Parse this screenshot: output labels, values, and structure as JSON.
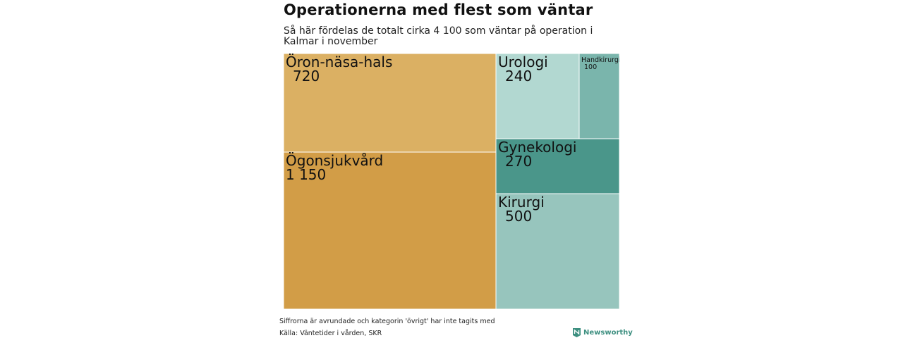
{
  "header": {
    "title": "Operationerna med flest som väntar",
    "subtitle": "Så här fördelas de totalt cirka 4 100 som väntar på operation i Kalmar i november"
  },
  "footer": {
    "note": "Siffrorna är avrundade och kategorin 'övrigt' har inte tagits med",
    "source": "Källa: Väntetider i vården, SKR",
    "brand": "Newsworthy",
    "brand_icon": "newsworthy-logo-icon"
  },
  "chart_data": {
    "type": "treemap",
    "title": "Operationerna med flest som väntar",
    "subtitle": "Så här fördelas de totalt cirka 4 100 som väntar på operation i Kalmar i november",
    "items": [
      {
        "label": "Ögonsjukvård",
        "value": 1150,
        "value_label": "1 150",
        "group": "left",
        "color": "#d29d47"
      },
      {
        "label": "Öron-näsa-hals",
        "value": 720,
        "value_label": "720",
        "group": "left",
        "color": "#dbb063"
      },
      {
        "label": "Kirurgi",
        "value": 500,
        "value_label": "500",
        "group": "right",
        "color": "#97c5bd"
      },
      {
        "label": "Gynekologi",
        "value": 270,
        "value_label": "270",
        "group": "right",
        "color": "#4a968a"
      },
      {
        "label": "Urologi",
        "value": 240,
        "value_label": "240",
        "group": "right-top",
        "color": "#b2d8d1"
      },
      {
        "label": "Handkirurgi",
        "value": 100,
        "value_label": "100",
        "group": "right-top",
        "color": "#7ab5ac"
      }
    ]
  }
}
